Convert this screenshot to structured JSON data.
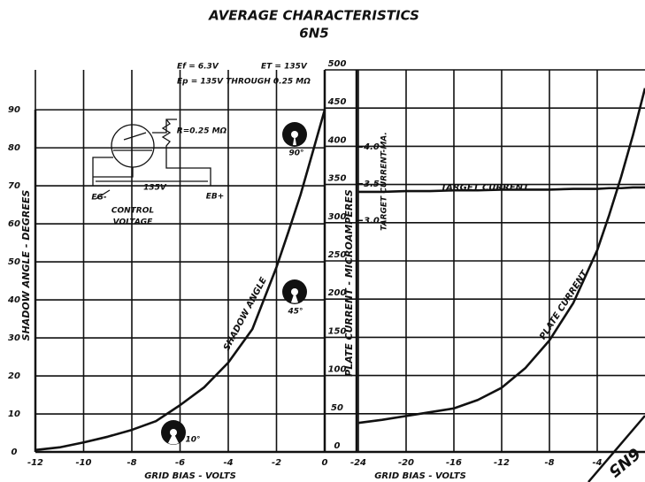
{
  "chart_data": [
    {
      "type": "line",
      "title": "AVERAGE CHARACTERISTICS",
      "subtitle": "6N5",
      "xlabel": "GRID BIAS - VOLTS",
      "ylabel": "SHADOW ANGLE - DEGREES",
      "y2label": "PLATE CURRENT - MICROAMPERES",
      "x": [
        -12,
        -11,
        -10,
        -9,
        -8,
        -7,
        -6,
        -5,
        -4,
        -3,
        -2,
        -1.5,
        -1,
        -0.5,
        0
      ],
      "series": [
        {
          "name": "SHADOW ANGLE",
          "color": "#111111",
          "values": [
            0.5,
            1.2,
            2.5,
            4,
            5.8,
            8.1,
            12.3,
            17,
            23.5,
            32.3,
            48.6,
            58,
            67.7,
            78.8,
            90
          ]
        }
      ],
      "xlim": [
        -12,
        0
      ],
      "xticks": [
        -12,
        -10,
        -8,
        -6,
        -4,
        -2,
        0
      ],
      "ylim": [
        0,
        100.5
      ],
      "yticks": [
        0,
        10,
        20,
        30,
        40,
        50,
        60,
        70,
        80,
        90
      ],
      "y2lim": [
        0,
        500
      ],
      "y2ticks": [
        0,
        50,
        100,
        150,
        200,
        250,
        300,
        350,
        400,
        450,
        500
      ],
      "grid": true,
      "annotations": [
        "Ef = 6.3V",
        "ET = 135V",
        "Ep = 135V THROUGH 0.25 MΩ",
        "R=0.25 MΩ",
        "135V",
        "EG-",
        "EB+",
        "CONTROL",
        "VOLTAGE",
        "10°",
        "45°",
        "90°"
      ]
    },
    {
      "type": "line",
      "xlabel": "GRID BIAS - VOLTS",
      "y2label": "TARGET CURRENT-MA.",
      "x": [
        -24,
        -22,
        -20,
        -18,
        -16,
        -14,
        -12,
        -10,
        -8,
        -6,
        -4,
        -3,
        -2,
        -1,
        0
      ],
      "series": [
        {
          "name": "PLATE CURRENT",
          "color": "#111111",
          "values": [
            38,
            42,
            47,
            52,
            57,
            68,
            84,
            110,
            146,
            195,
            264,
            310,
            360,
            415,
            476
          ]
        },
        {
          "name": "TARGET CURRENT",
          "color": "#111111",
          "axis": "y2",
          "values": [
            3.39,
            3.39,
            3.4,
            3.4,
            3.41,
            3.41,
            3.42,
            3.42,
            3.42,
            3.43,
            3.43,
            3.44,
            3.44,
            3.45,
            3.45
          ]
        }
      ],
      "xlim": [
        -24,
        0
      ],
      "xticks": [
        -24,
        -20,
        -16,
        -12,
        -8,
        -4
      ],
      "ylim": [
        0,
        500
      ],
      "y2lim": [
        -0.15,
        5.05
      ],
      "y2ticks": [
        {
          "value": 3,
          "label": "3.0"
        },
        3.5,
        {
          "value": 4,
          "label": "4.0"
        }
      ],
      "grid": true,
      "annotations": [
        "6N5"
      ]
    }
  ]
}
